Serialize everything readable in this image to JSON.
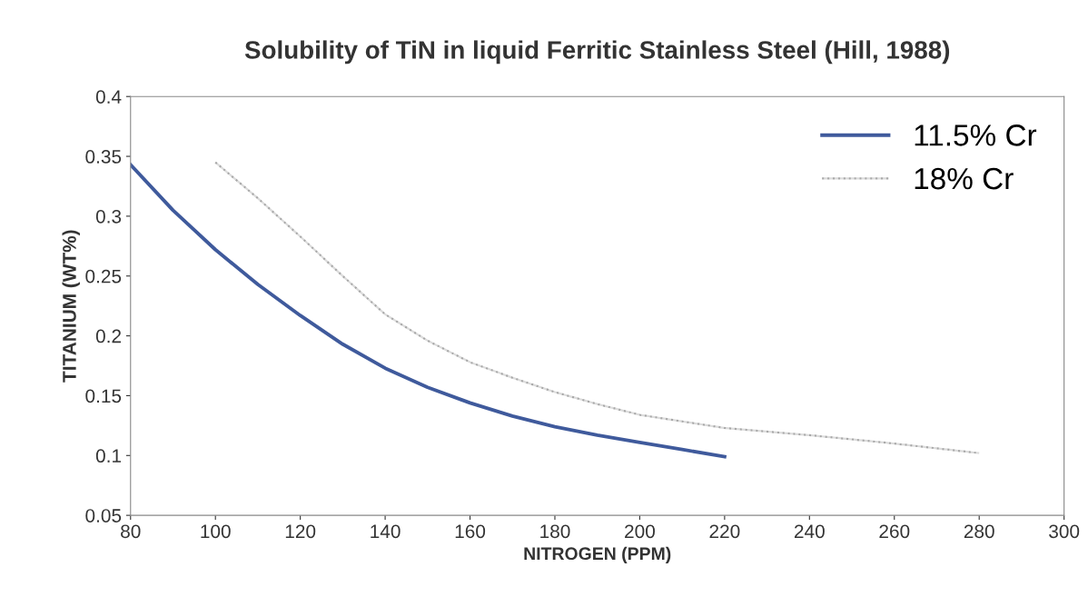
{
  "chart_data": {
    "type": "line",
    "title": "Solubility of TiN in liquid Ferritic Stainless Steel (Hill, 1988)",
    "xlabel": "NITROGEN (PPM)",
    "ylabel": "TITANIUM (WT%)",
    "xlim": [
      80,
      300
    ],
    "xticks": [
      80,
      100,
      120,
      140,
      160,
      180,
      200,
      220,
      240,
      260,
      280,
      300
    ],
    "ylim": [
      0.05,
      0.4
    ],
    "yticks": [
      0.05,
      0.1,
      0.15,
      0.2,
      0.25,
      0.3,
      0.35,
      0.4
    ],
    "grid": false,
    "legend": "top right",
    "series": [
      {
        "name": "11.5% Cr",
        "color": "#3f5a9c",
        "line_style": "solid",
        "x": [
          80,
          90,
          100,
          110,
          120,
          130,
          140,
          150,
          160,
          170,
          180,
          190,
          200,
          210,
          220
        ],
        "values": [
          0.343,
          0.305,
          0.272,
          0.243,
          0.217,
          0.193,
          0.173,
          0.157,
          0.144,
          0.133,
          0.124,
          0.117,
          0.111,
          0.105,
          0.099
        ]
      },
      {
        "name": "18% Cr",
        "color": "#a8a8a8",
        "line_style": "dotted",
        "x": [
          100,
          110,
          120,
          130,
          140,
          150,
          160,
          170,
          180,
          190,
          200,
          220,
          240,
          260,
          280
        ],
        "values": [
          0.345,
          0.315,
          0.283,
          0.25,
          0.218,
          0.196,
          0.178,
          0.165,
          0.153,
          0.143,
          0.134,
          0.123,
          0.117,
          0.11,
          0.102
        ]
      }
    ]
  }
}
